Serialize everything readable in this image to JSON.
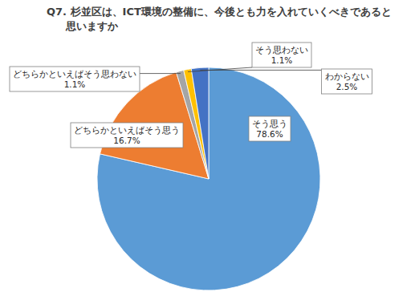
{
  "chart_data": {
    "type": "pie",
    "title": "Q7. 杉並区は、ICT環境の整備に、今後とも力を入れていくべきであると思いますか",
    "categories": [
      "そう思う",
      "どちらかといえばそう思う",
      "どちらかといえばそう思わない",
      "そう思わない",
      "わからない"
    ],
    "values": [
      78.6,
      16.7,
      1.1,
      1.1,
      2.5
    ],
    "value_labels": [
      "78.6%",
      "16.7%",
      "1.1%",
      "1.1%",
      "2.5%"
    ],
    "colors": [
      "#5b9bd5",
      "#ed7d31",
      "#a5a5a5",
      "#ffc000",
      "#4472c4"
    ],
    "data_labels": true
  }
}
